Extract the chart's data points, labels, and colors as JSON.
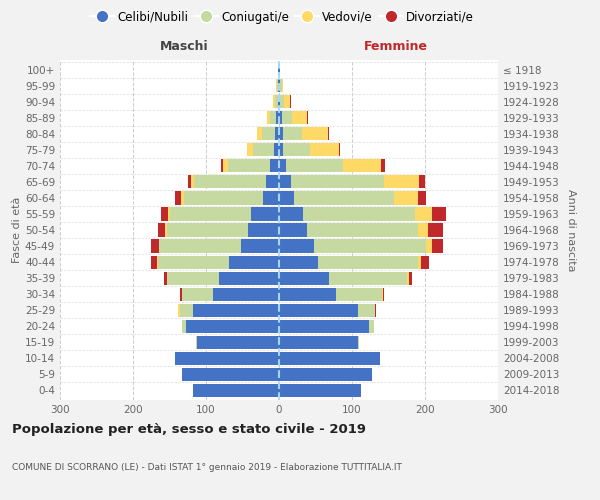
{
  "age_groups": [
    "0-4",
    "5-9",
    "10-14",
    "15-19",
    "20-24",
    "25-29",
    "30-34",
    "35-39",
    "40-44",
    "45-49",
    "50-54",
    "55-59",
    "60-64",
    "65-69",
    "70-74",
    "75-79",
    "80-84",
    "85-89",
    "90-94",
    "95-99",
    "100+"
  ],
  "birth_years": [
    "2014-2018",
    "2009-2013",
    "2004-2008",
    "1999-2003",
    "1994-1998",
    "1989-1993",
    "1984-1988",
    "1979-1983",
    "1974-1978",
    "1969-1973",
    "1964-1968",
    "1959-1963",
    "1954-1958",
    "1949-1953",
    "1944-1948",
    "1939-1943",
    "1934-1938",
    "1929-1933",
    "1924-1928",
    "1919-1923",
    "≤ 1918"
  ],
  "maschi": {
    "celibi": [
      118,
      133,
      143,
      112,
      128,
      118,
      90,
      82,
      68,
      52,
      42,
      38,
      22,
      18,
      12,
      7,
      5,
      4,
      2,
      2,
      1
    ],
    "coniugati": [
      0,
      0,
      0,
      2,
      5,
      18,
      43,
      72,
      98,
      112,
      112,
      112,
      108,
      98,
      58,
      28,
      18,
      8,
      3,
      1,
      0
    ],
    "vedovi": [
      0,
      0,
      0,
      0,
      0,
      2,
      0,
      0,
      1,
      1,
      2,
      2,
      4,
      4,
      7,
      9,
      7,
      4,
      3,
      1,
      0
    ],
    "divorziati": [
      0,
      0,
      0,
      0,
      0,
      0,
      2,
      4,
      8,
      10,
      10,
      10,
      8,
      5,
      2,
      0,
      0,
      0,
      0,
      0,
      0
    ]
  },
  "femmine": {
    "nubili": [
      113,
      128,
      138,
      108,
      123,
      108,
      78,
      68,
      53,
      48,
      38,
      33,
      20,
      16,
      9,
      5,
      5,
      4,
      2,
      2,
      1
    ],
    "coniugate": [
      0,
      0,
      0,
      2,
      7,
      23,
      63,
      108,
      138,
      153,
      153,
      153,
      138,
      128,
      78,
      38,
      27,
      14,
      5,
      2,
      0
    ],
    "vedove": [
      0,
      0,
      0,
      0,
      0,
      1,
      1,
      2,
      4,
      9,
      13,
      23,
      33,
      48,
      53,
      39,
      35,
      20,
      8,
      2,
      0
    ],
    "divorziate": [
      0,
      0,
      0,
      0,
      0,
      1,
      2,
      4,
      10,
      15,
      20,
      20,
      10,
      8,
      5,
      2,
      2,
      2,
      1,
      0,
      0
    ]
  },
  "colors": {
    "celibi_nubili": "#4472C4",
    "coniugati": "#C5D9A0",
    "vedovi": "#FFD966",
    "divorziati": "#C0282C"
  },
  "xlim": [
    -300,
    300
  ],
  "xticks": [
    -300,
    -200,
    -100,
    0,
    100,
    200,
    300
  ],
  "xticklabels": [
    "300",
    "200",
    "100",
    "0",
    "100",
    "200",
    "300"
  ],
  "title": "Popolazione per età, sesso e stato civile - 2019",
  "subtitle": "COMUNE DI SCORRANO (LE) - Dati ISTAT 1° gennaio 2019 - Elaborazione TUTTITALIA.IT",
  "ylabel_left": "Fasce di età",
  "ylabel_right": "Anni di nascita",
  "maschi_label": "Maschi",
  "femmine_label": "Femmine",
  "legend_labels": [
    "Celibi/Nubili",
    "Coniugati/e",
    "Vedovi/e",
    "Divorziati/e"
  ],
  "background_color": "#f2f2f2",
  "plot_background": "#ffffff"
}
